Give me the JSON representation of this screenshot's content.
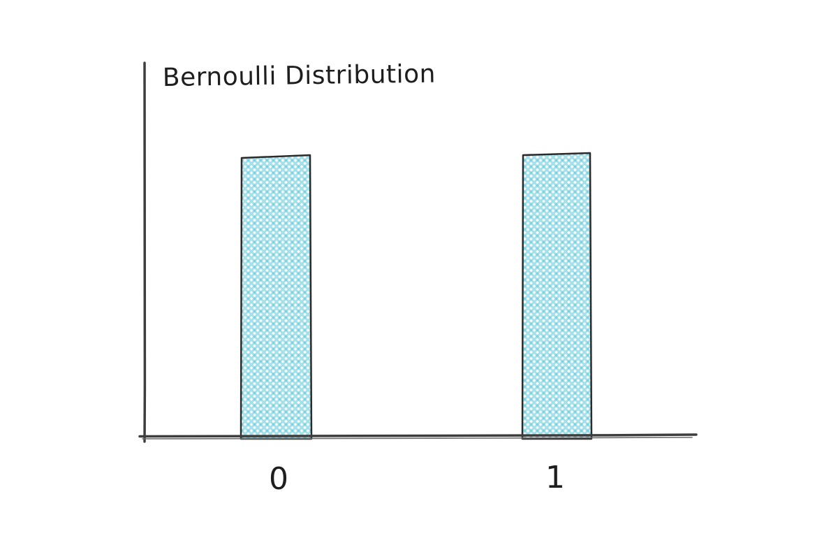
{
  "chart_data": {
    "type": "bar",
    "title": "Bernoulli Distribution",
    "categories": [
      "0",
      "1"
    ],
    "values": [
      0.5,
      0.5
    ],
    "xlabel": "",
    "ylabel": "",
    "ylim": [
      0,
      0.75
    ],
    "grid": false,
    "legend_position": "none",
    "style": "hand-drawn-sketch",
    "bar_fill_pattern": "cross-hatch",
    "bar_fill_color": "#57c7d9",
    "bar_stroke_color": "#2b2b2b",
    "axis_color": "#3d3d3d",
    "text_color": "#1e1e1e",
    "background_color": "#ffffff"
  }
}
